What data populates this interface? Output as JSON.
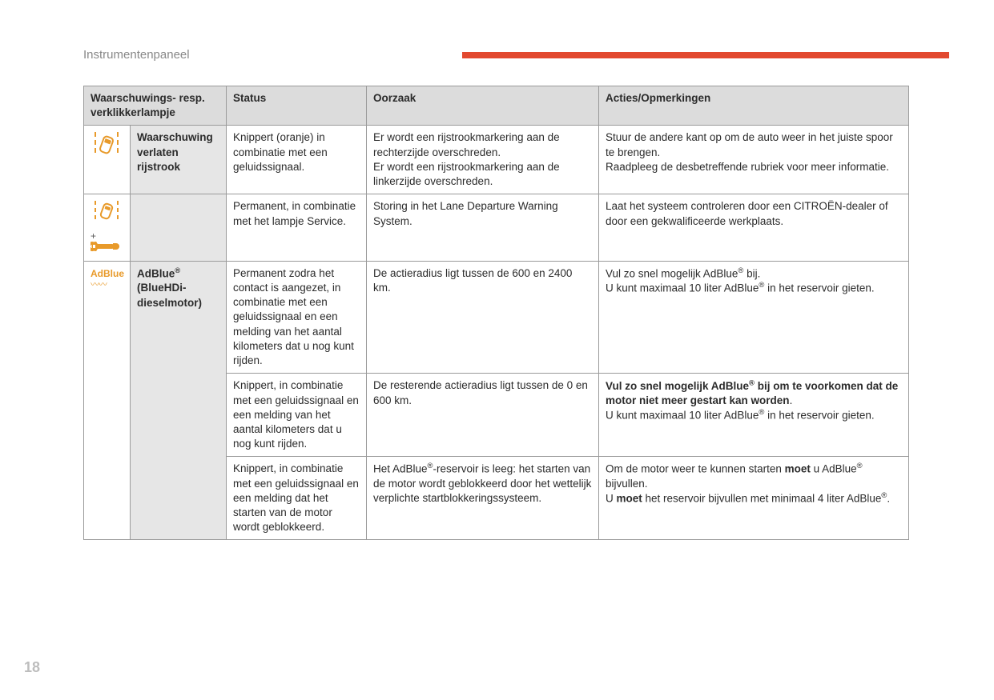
{
  "colors": {
    "accent_bar": "#e2492f",
    "icon_orange": "#e89a2a",
    "header_bg": "#dcdcdc",
    "name_bg": "#e6e6e6",
    "border": "#9a9a9a",
    "text": "#2b2b2b",
    "muted": "#888888",
    "pagenum": "#bdbdbd"
  },
  "section_title": "Instrumentenpaneel",
  "page_number": "18",
  "table": {
    "headers": {
      "lamp": "Waarschuwings- resp. verklikkerlampje",
      "status": "Status",
      "cause": "Oorzaak",
      "action": "Acties/Opmerkingen"
    },
    "rows": [
      {
        "icon": "lane",
        "name_html": "Waarschuwing verlaten rijstrook",
        "status": "Knippert (oranje) in combinatie met een geluidssignaal.",
        "cause": "Er wordt een rijstrookmarkering aan de rechterzijde overschreden.\nEr wordt een rijstrookmarkering aan de linkerzijde overschreden.",
        "action": "Stuur de andere kant op om de auto weer in het juiste spoor te brengen.\nRaadpleeg de desbetreffende rubriek voor meer informatie."
      },
      {
        "icon": "lane-plus-wrench",
        "name_html": "",
        "status": "Permanent, in combinatie met het lampje Service.",
        "cause": "Storing in het Lane Departure Warning System.",
        "action": "Laat het systeem controleren door een CITROËN-dealer of door een gekwalificeerde werkplaats."
      },
      {
        "icon": "adblue",
        "name_html": "AdBlue<sup>®</sup> (BlueHDi-dieselmotor)",
        "status": "Permanent zodra het contact is aangezet, in combinatie met een geluidssignaal en een melding van het aantal kilometers dat u nog kunt rijden.",
        "cause": "De actieradius ligt tussen de 600 en 2400 km.",
        "action": "Vul zo snel mogelijk AdBlue<sup>®</sup> bij.\nU kunt maximaal 10 liter AdBlue<sup>®</sup> in het reservoir gieten."
      },
      {
        "status": "Knippert, in combinatie met een geluidssignaal en een melding van het aantal kilometers dat u nog kunt rijden.",
        "cause": "De resterende actieradius ligt tussen de 0 en 600 km.",
        "action": "<span class=\"bold\">Vul zo snel mogelijk AdBlue<sup>®</sup> bij om te voorkomen dat de motor niet meer gestart kan worden</span>.\nU kunt maximaal 10 liter AdBlue<sup>®</sup> in het reservoir gieten."
      },
      {
        "status": "Knippert, in combinatie met een geluidssignaal en een melding dat het starten van de motor wordt geblokkeerd.",
        "cause": "Het AdBlue<sup>®</sup>-reservoir is leeg: het starten van de motor wordt geblokkeerd door het wettelijk verplichte startblokkeringssysteem.",
        "action": "Om de motor weer te kunnen starten <span class=\"bold\">moet</span> u AdBlue<sup>®</sup> bijvullen.\nU <span class=\"bold\">moet</span> het reservoir bijvullen met minimaal 4 liter AdBlue<sup>®</sup>."
      }
    ]
  }
}
